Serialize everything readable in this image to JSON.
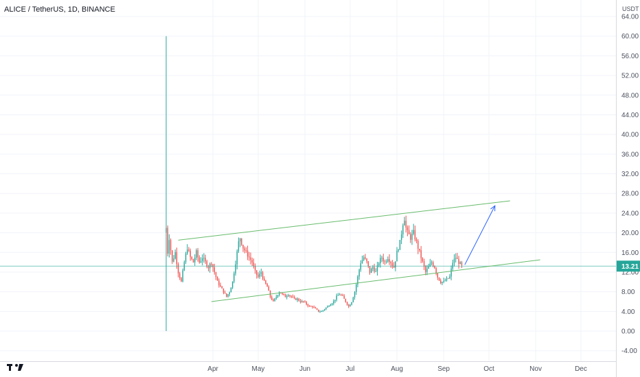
{
  "header": {
    "title": "ALICE / TetherUS, 1D, BINANCE"
  },
  "chart_data": {
    "type": "candlestick",
    "currency": "USDT",
    "last_price": 13.21,
    "last_price_label": "13.21",
    "y_ticks": [
      "64.00",
      "60.00",
      "56.00",
      "52.00",
      "48.00",
      "44.00",
      "40.00",
      "36.00",
      "32.00",
      "28.00",
      "24.00",
      "20.00",
      "16.00",
      "12.00",
      "8.00",
      "4.00",
      "0.00",
      "-4.00"
    ],
    "ylim": [
      -4,
      64
    ],
    "x_ticks": [
      {
        "label": "Apr",
        "day": 31
      },
      {
        "label": "May",
        "day": 61
      },
      {
        "label": "Jun",
        "day": 92
      },
      {
        "label": "Jul",
        "day": 122
      },
      {
        "label": "Aug",
        "day": 153
      },
      {
        "label": "Sep",
        "day": 184
      },
      {
        "label": "Oct",
        "day": 214
      },
      {
        "label": "Nov",
        "day": 245
      },
      {
        "label": "Dec",
        "day": 275
      }
    ],
    "x_range_days": [
      -10,
      290
    ],
    "grid": true,
    "price_keypoints": [
      [
        0,
        21
      ],
      [
        1,
        16
      ],
      [
        2,
        19
      ],
      [
        4,
        14
      ],
      [
        6,
        16
      ],
      [
        8,
        12
      ],
      [
        10,
        10
      ],
      [
        12,
        14
      ],
      [
        14,
        17
      ],
      [
        16,
        15
      ],
      [
        18,
        14
      ],
      [
        20,
        16
      ],
      [
        22,
        14
      ],
      [
        24,
        15
      ],
      [
        26,
        14
      ],
      [
        28,
        13
      ],
      [
        30,
        14
      ],
      [
        32,
        12
      ],
      [
        34,
        10
      ],
      [
        36,
        9
      ],
      [
        38,
        8
      ],
      [
        40,
        7
      ],
      [
        42,
        8
      ],
      [
        44,
        10
      ],
      [
        46,
        14
      ],
      [
        48,
        18
      ],
      [
        49,
        19
      ],
      [
        51,
        17
      ],
      [
        53,
        16
      ],
      [
        55,
        15
      ],
      [
        57,
        14
      ],
      [
        59,
        12
      ],
      [
        61,
        11
      ],
      [
        63,
        12
      ],
      [
        65,
        10
      ],
      [
        67,
        9
      ],
      [
        69,
        7
      ],
      [
        71,
        6
      ],
      [
        73,
        7
      ],
      [
        75,
        8
      ],
      [
        77,
        7.5
      ],
      [
        79,
        7
      ],
      [
        81,
        7.5
      ],
      [
        83,
        7
      ],
      [
        85,
        6.5
      ],
      [
        87,
        6.5
      ],
      [
        89,
        6
      ],
      [
        91,
        6
      ],
      [
        93,
        5.5
      ],
      [
        95,
        5
      ],
      [
        97,
        5
      ],
      [
        99,
        4.5
      ],
      [
        101,
        4
      ],
      [
        103,
        4
      ],
      [
        105,
        4.5
      ],
      [
        107,
        5
      ],
      [
        109,
        5.5
      ],
      [
        111,
        6
      ],
      [
        113,
        7
      ],
      [
        115,
        7.5
      ],
      [
        117,
        7
      ],
      [
        119,
        6
      ],
      [
        121,
        5
      ],
      [
        123,
        6
      ],
      [
        125,
        8
      ],
      [
        127,
        11
      ],
      [
        129,
        14
      ],
      [
        131,
        15
      ],
      [
        133,
        14
      ],
      [
        135,
        12
      ],
      [
        137,
        13
      ],
      [
        139,
        12
      ],
      [
        141,
        14
      ],
      [
        143,
        15
      ],
      [
        145,
        14
      ],
      [
        147,
        15
      ],
      [
        149,
        14
      ],
      [
        151,
        13
      ],
      [
        153,
        16
      ],
      [
        155,
        18
      ],
      [
        157,
        22
      ],
      [
        158,
        23
      ],
      [
        159,
        21
      ],
      [
        160,
        20
      ],
      [
        162,
        19
      ],
      [
        164,
        20
      ],
      [
        166,
        18
      ],
      [
        168,
        16
      ],
      [
        170,
        14
      ],
      [
        172,
        12
      ],
      [
        174,
        13
      ],
      [
        176,
        14
      ],
      [
        178,
        13
      ],
      [
        180,
        11
      ],
      [
        182,
        10
      ],
      [
        184,
        10
      ],
      [
        186,
        10.5
      ],
      [
        188,
        11
      ],
      [
        190,
        14
      ],
      [
        192,
        15
      ],
      [
        194,
        14
      ],
      [
        196,
        13.21
      ]
    ],
    "annotations": {
      "initial_spike": {
        "day": 0,
        "high": 60,
        "low": 0
      },
      "upper_channel": [
        [
          8,
          18.5
        ],
        [
          228,
          26.5
        ]
      ],
      "lower_channel": [
        [
          30,
          6
        ],
        [
          248,
          14.5
        ]
      ],
      "projection_arrow": [
        [
          198,
          13.5
        ],
        [
          218,
          25.5
        ]
      ],
      "last_price_line": 13.21
    }
  }
}
